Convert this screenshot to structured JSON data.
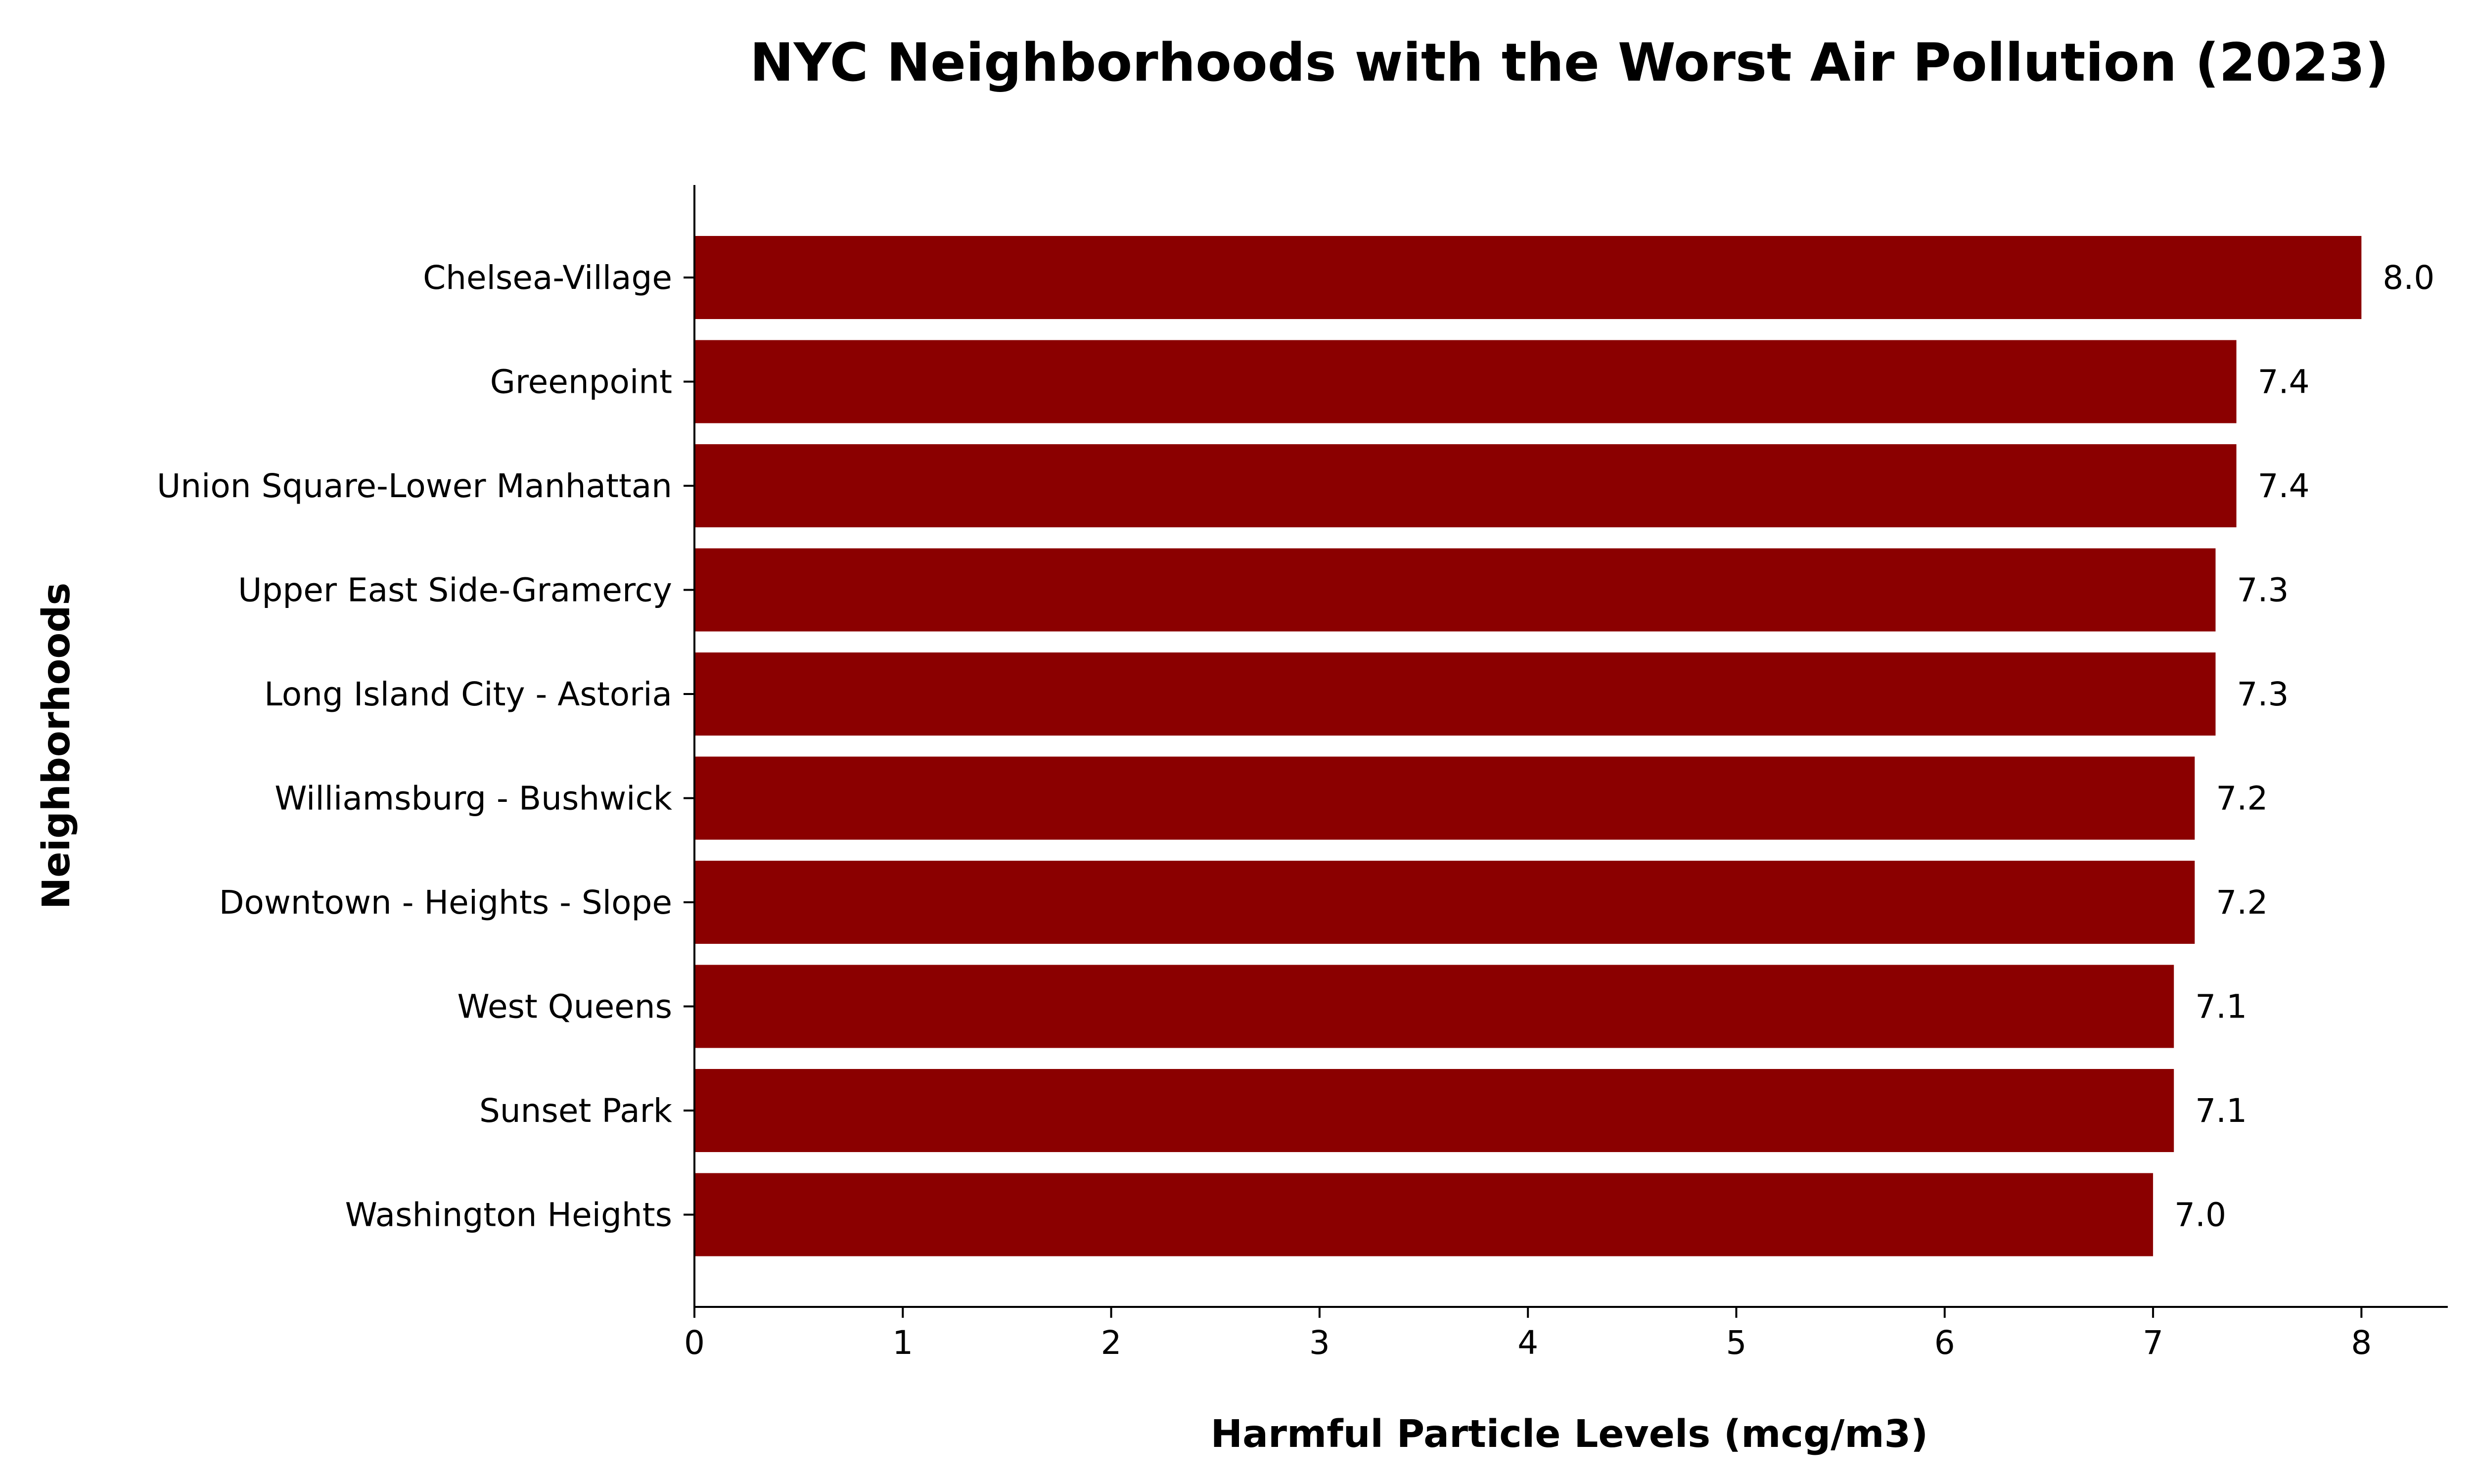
{
  "chart_data": {
    "type": "bar",
    "orientation": "horizontal",
    "title": "NYC Neighborhoods with the Worst Air Pollution (2023)",
    "xlabel": "Harmful Particle Levels (mcg/m3)",
    "ylabel": "Neighborhoods",
    "xlim": [
      0,
      8.4
    ],
    "xticks": [
      "0",
      "1",
      "2",
      "3",
      "4",
      "5",
      "6",
      "7",
      "8"
    ],
    "grid": false,
    "bar_color": "#8B0000",
    "categories": [
      "Chelsea-Village",
      "Greenpoint",
      "Union Square-Lower Manhattan",
      "Upper East Side-Gramercy",
      "Long Island City - Astoria",
      "Williamsburg - Bushwick",
      "Downtown - Heights - Slope",
      "West Queens",
      "Sunset Park",
      "Washington Heights"
    ],
    "values": [
      8.0,
      7.4,
      7.4,
      7.3,
      7.3,
      7.2,
      7.2,
      7.1,
      7.1,
      7.0
    ],
    "value_labels": [
      "8.0",
      "7.4",
      "7.4",
      "7.3",
      "7.3",
      "7.2",
      "7.2",
      "7.1",
      "7.1",
      "7.0"
    ]
  }
}
